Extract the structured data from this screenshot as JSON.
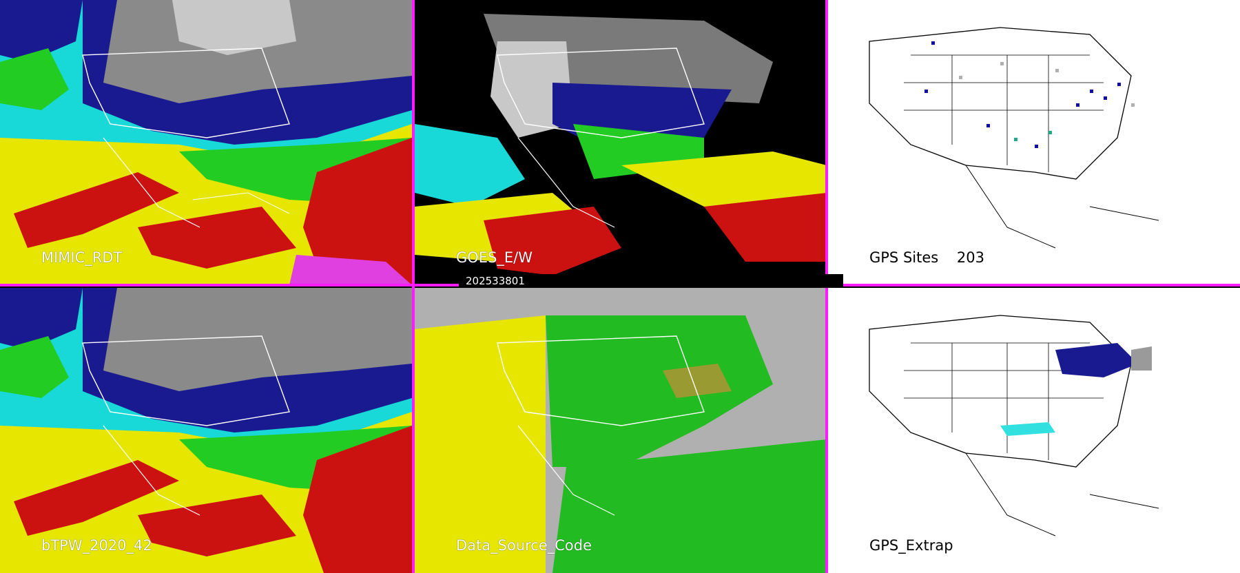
{
  "panels": [
    {
      "label": "MIMIC_RDT",
      "style": "tpw"
    },
    {
      "label": "GOES_E/W",
      "style": "goes"
    },
    {
      "label": "GPS Sites    203",
      "style": "gps"
    },
    {
      "label": "bTPW_2020_42",
      "style": "tpw"
    },
    {
      "label": "Data_Source_Code",
      "style": "source"
    },
    {
      "label": "GPS_Extrap",
      "style": "extrap"
    }
  ],
  "timestamp": "202533801",
  "colors": {
    "separator": "#ff1aff",
    "palette": [
      "#2b2b2b",
      "#b0b0b0",
      "#1010a0",
      "#33e0e0",
      "#22cc22",
      "#e6e600",
      "#cc1111",
      "#e040e0"
    ]
  }
}
